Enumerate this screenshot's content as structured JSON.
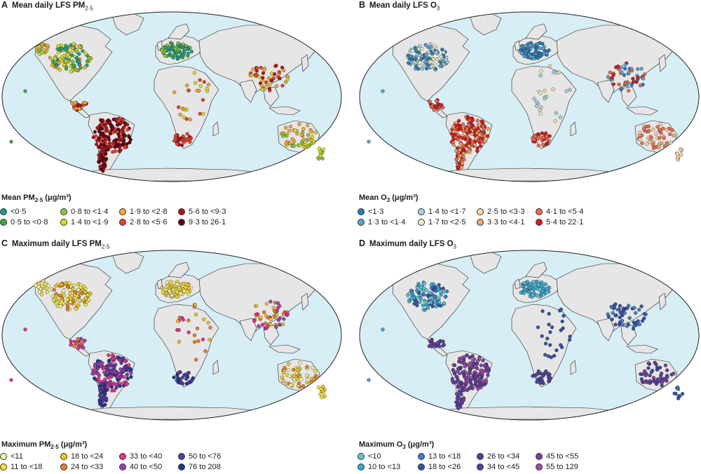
{
  "panels": [
    {
      "letter": "A",
      "title": "Mean daily LFS PM",
      "title_sub": "2·5",
      "legend_title": "Mean PM",
      "legend_sub": "2·5",
      "legend_unit": " (μg/m³)",
      "classes": [
        {
          "label": "<0·5",
          "color": "#1f9e89"
        },
        {
          "label": "0·5 to <0·8",
          "color": "#3cae3c"
        },
        {
          "label": "0·8 to <1·4",
          "color": "#8cc63f"
        },
        {
          "label": "1·4 to <1·9",
          "color": "#d9e021"
        },
        {
          "label": "1·9 to <2·8",
          "color": "#f7a833"
        },
        {
          "label": "2·8 to <5·6",
          "color": "#e8412b"
        },
        {
          "label": "5·6 to <9·3",
          "color": "#b5121b"
        },
        {
          "label": "9·3 to 26·1",
          "color": "#67000d"
        }
      ]
    },
    {
      "letter": "B",
      "title": "Mean daily LFS O",
      "title_sub": "3",
      "legend_title": "Mean O",
      "legend_sub": "3",
      "legend_unit": " (μg/m³)",
      "classes": [
        {
          "label": "<1·3",
          "color": "#2c7bb6"
        },
        {
          "label": "1·3 to <1·4",
          "color": "#5fa2d0"
        },
        {
          "label": "1·4 to <1·7",
          "color": "#a8cfe3"
        },
        {
          "label": "1·7 to <2·5",
          "color": "#e3efc6"
        },
        {
          "label": "2·5 to <3·3",
          "color": "#fdd49e"
        },
        {
          "label": "3·3 to <4·1",
          "color": "#f6a663"
        },
        {
          "label": "4·1 to <5·4",
          "color": "#ee6a4a"
        },
        {
          "label": "5·4 to 22·1",
          "color": "#d7191c"
        }
      ]
    },
    {
      "letter": "C",
      "title": "Maximum daily LFS PM",
      "title_sub": "2·5",
      "legend_title": "Maximum PM",
      "legend_sub": "2·5",
      "legend_unit": " (μg/m³)",
      "classes": [
        {
          "label": "<11",
          "color": "#f5f5a0"
        },
        {
          "label": "11 to <18",
          "color": "#f0e442"
        },
        {
          "label": "18 to <24",
          "color": "#f3c622"
        },
        {
          "label": "24 to <33",
          "color": "#ee7a28"
        },
        {
          "label": "33 to <40",
          "color": "#e8308c"
        },
        {
          "label": "40 to <50",
          "color": "#9b3fb5"
        },
        {
          "label": "50 to <76",
          "color": "#5b3a9e"
        },
        {
          "label": "76 to 208",
          "color": "#1d3a8a"
        }
      ]
    },
    {
      "letter": "D",
      "title": "Maximum daily LFS O",
      "title_sub": "3",
      "legend_title": "Maximum O",
      "legend_sub": "3",
      "legend_unit": " (μg/m³)",
      "classes": [
        {
          "label": "<10",
          "color": "#5ec4d8"
        },
        {
          "label": "10 to <13",
          "color": "#3ba7d6"
        },
        {
          "label": "13 to <18",
          "color": "#3f7fc8"
        },
        {
          "label": "18 to <26",
          "color": "#2f58a8"
        },
        {
          "label": "26 to <34",
          "color": "#3d4a9e"
        },
        {
          "label": "34 to <45",
          "color": "#5a3f9a"
        },
        {
          "label": "45 to <55",
          "color": "#7b3f9b"
        },
        {
          "label": "55 to 129",
          "color": "#9b4fa6"
        }
      ]
    }
  ],
  "ocean_color": "#d8eef6",
  "land_color": "#e6e6e6"
}
